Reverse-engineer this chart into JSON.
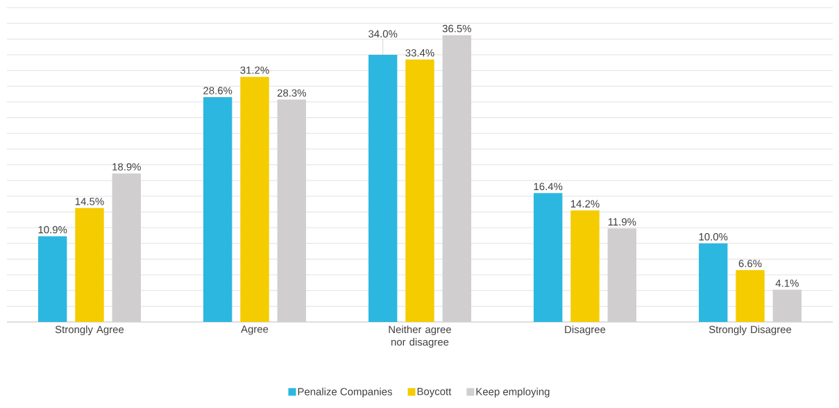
{
  "chart_data": {
    "type": "bar",
    "categories": [
      "Strongly Agree",
      "Agree",
      "Neither agree nor disagree",
      "Disagree",
      "Strongly Disagree"
    ],
    "series": [
      {
        "name": "Penalize Companies",
        "color": "#2cb7e0",
        "values": [
          10.9,
          28.6,
          34.0,
          16.4,
          10.0
        ],
        "value_labels": [
          "10.9%",
          "28.6%",
          "34.0%",
          "16.4%",
          "10.0%"
        ]
      },
      {
        "name": "Boycott",
        "color": "#f5cc00",
        "values": [
          14.5,
          31.2,
          33.4,
          14.2,
          6.6
        ],
        "value_labels": [
          "14.5%",
          "31.2%",
          "33.4%",
          "14.2%",
          "6.6%"
        ]
      },
      {
        "name": "Keep employing",
        "color": "#d0cece",
        "values": [
          18.9,
          28.3,
          36.5,
          11.9,
          4.1
        ],
        "value_labels": [
          "18.9%",
          "28.3%",
          "36.5%",
          "11.9%",
          "4.1%"
        ]
      }
    ],
    "ylim": [
      0,
      40
    ],
    "tick_labels": "x",
    "grid": "y",
    "legend": "bottom"
  }
}
